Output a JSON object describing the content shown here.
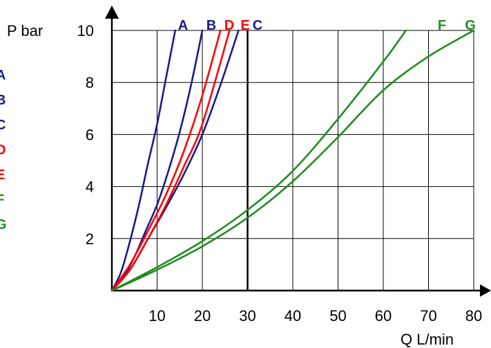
{
  "chart_data": {
    "type": "line",
    "title": "",
    "xlabel": "Q L/min",
    "ylabel": "P bar",
    "xlim": [
      0,
      80
    ],
    "ylim": [
      0,
      10
    ],
    "x_ticks": [
      "10",
      "20",
      "30",
      "40",
      "50",
      "60",
      "70",
      "80"
    ],
    "y_ticks": [
      "2",
      "4",
      "6",
      "8",
      "10"
    ],
    "grid": true,
    "legend": {
      "placement": "left (partially cropped)",
      "entries": [
        {
          "label": "A",
          "color": "#1a1a8c"
        },
        {
          "label": "B",
          "color": "#1a1a8c"
        },
        {
          "label": "C",
          "color": "#1a1a8c"
        },
        {
          "label": "D",
          "color": "#ff0000"
        },
        {
          "label": "E",
          "color": "#ff0000"
        },
        {
          "label": "F",
          "color": "#1e8c1e"
        },
        {
          "label": "G",
          "color": "#1e8c1e"
        }
      ]
    },
    "series": [
      {
        "name": "A",
        "color": "#1a1a8c",
        "x": [
          0,
          2,
          4,
          6,
          8,
          10,
          12,
          14
        ],
        "y": [
          0,
          0.7,
          1.9,
          3.3,
          4.9,
          6.4,
          8.2,
          10.0
        ]
      },
      {
        "name": "B",
        "color": "#1a1a8c",
        "x": [
          0,
          2.5,
          5,
          7.5,
          10,
          12.5,
          15,
          17.5,
          20
        ],
        "y": [
          0,
          0.5,
          1.3,
          2.3,
          3.3,
          4.6,
          6.1,
          7.9,
          10.0
        ]
      },
      {
        "name": "C",
        "color": "#1a1a8c",
        "x": [
          0,
          4,
          8,
          12,
          16,
          20,
          24,
          28
        ],
        "y": [
          0,
          0.8,
          2.0,
          3.2,
          4.5,
          6.0,
          7.9,
          10.0
        ]
      },
      {
        "name": "D",
        "color": "#ff0000",
        "x": [
          0,
          4,
          8,
          12,
          16,
          20,
          24
        ],
        "y": [
          0,
          1.0,
          2.3,
          3.7,
          5.4,
          7.5,
          10.0
        ]
      },
      {
        "name": "E",
        "color": "#ff0000",
        "x": [
          0,
          4,
          8,
          12,
          16,
          20,
          26
        ],
        "y": [
          0,
          0.8,
          2.0,
          3.3,
          4.8,
          6.4,
          10.0
        ]
      },
      {
        "name": "F",
        "color": "#1e8c1e",
        "x": [
          0,
          10,
          20,
          30,
          40,
          50,
          60,
          65
        ],
        "y": [
          0,
          0.9,
          1.9,
          3.1,
          4.6,
          6.6,
          8.8,
          10.0
        ]
      },
      {
        "name": "G",
        "color": "#1e8c1e",
        "x": [
          0,
          10,
          20,
          30,
          40,
          50,
          60,
          70,
          80
        ],
        "y": [
          0,
          0.8,
          1.7,
          2.8,
          4.2,
          5.9,
          7.7,
          9.0,
          10.0
        ]
      }
    ]
  }
}
